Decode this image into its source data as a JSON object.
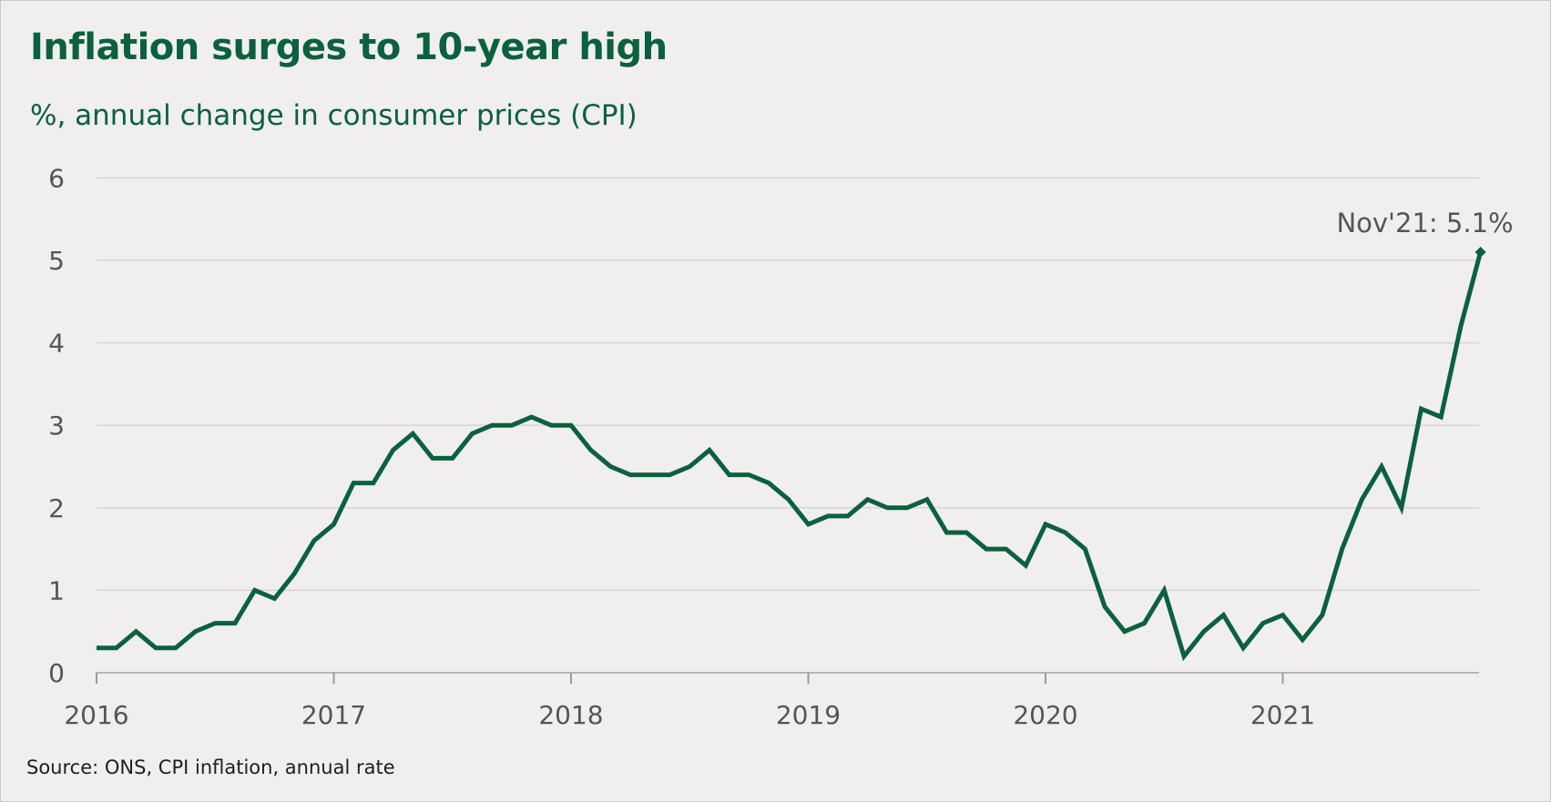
{
  "chart_data": {
    "type": "line",
    "title": "Inflation surges to 10-year high",
    "subtitle": "%, annual change in consumer prices (CPI)",
    "source": "Source: ONS, CPI inflation, annual rate",
    "xlabel": "",
    "ylabel": "",
    "ylim": [
      0,
      6
    ],
    "y_ticks": [
      "0",
      "1",
      "2",
      "3",
      "4",
      "5",
      "6"
    ],
    "x_ticks": [
      "2016",
      "2017",
      "2018",
      "2019",
      "2020",
      "2021"
    ],
    "grid": true,
    "x_start": "2016-01",
    "x_end": "2021-11",
    "series": [
      {
        "color": "#0b6040",
        "values": [
          0.3,
          0.3,
          0.5,
          0.3,
          0.3,
          0.5,
          0.6,
          0.6,
          1.0,
          0.9,
          1.2,
          1.6,
          1.8,
          2.3,
          2.3,
          2.7,
          2.9,
          2.6,
          2.6,
          2.9,
          3.0,
          3.0,
          3.1,
          3.0,
          3.0,
          2.7,
          2.5,
          2.4,
          2.4,
          2.4,
          2.5,
          2.7,
          2.4,
          2.4,
          2.3,
          2.1,
          1.8,
          1.9,
          1.9,
          2.1,
          2.0,
          2.0,
          2.1,
          1.7,
          1.7,
          1.5,
          1.5,
          1.3,
          1.8,
          1.7,
          1.5,
          0.8,
          0.5,
          0.6,
          1.0,
          0.2,
          0.5,
          0.7,
          0.3,
          0.6,
          0.7,
          0.4,
          0.7,
          1.5,
          2.1,
          2.5,
          2.0,
          3.2,
          3.1,
          4.2,
          5.1
        ]
      }
    ],
    "annotation": {
      "text": "Nov'21: 5.1%",
      "value": 5.1
    }
  }
}
